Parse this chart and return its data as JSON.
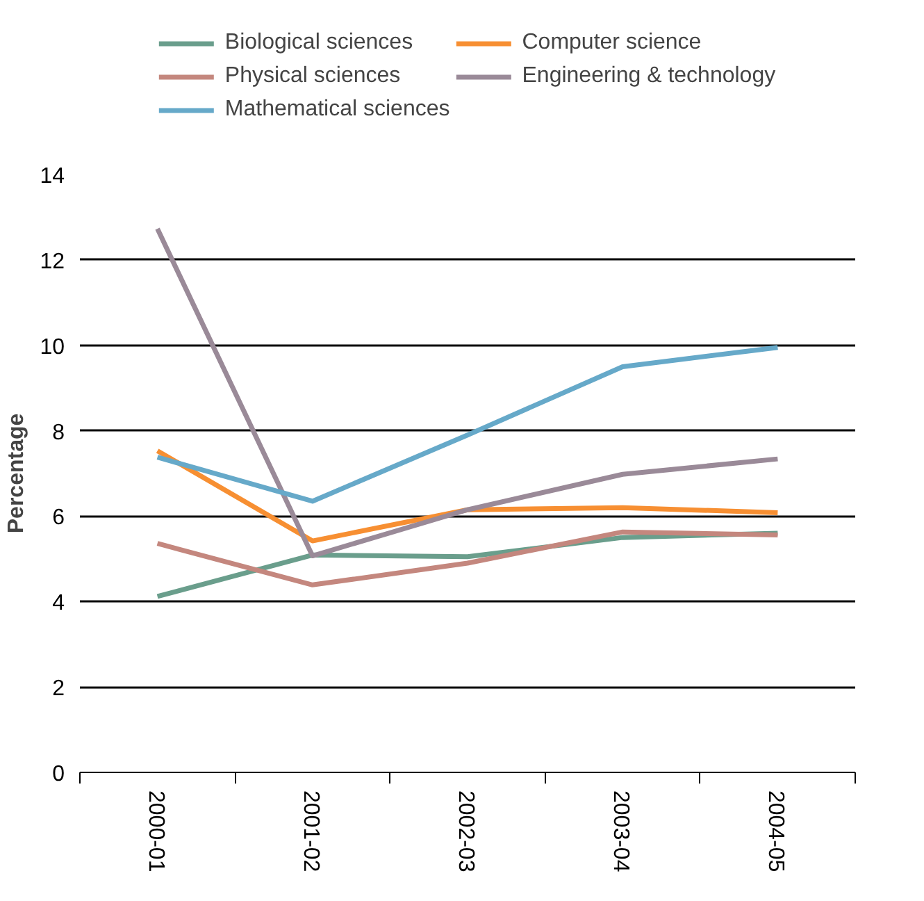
{
  "chart_data": {
    "type": "line",
    "ylabel": "Percentage",
    "categories": [
      "2000-01",
      "2001-02",
      "2002-03",
      "2003-04",
      "2004-05"
    ],
    "ylim": [
      0,
      14
    ],
    "yticks": [
      0,
      2,
      4,
      6,
      8,
      10,
      12,
      14
    ],
    "grid": "y",
    "legend": "top",
    "line_style": "solid",
    "marker": "none",
    "series": [
      {
        "name": "Biological sciences",
        "color": "#6a9e8c",
        "values": [
          4.12,
          5.09,
          5.05,
          5.5,
          5.6
        ]
      },
      {
        "name": "Computer science",
        "color": "#f78f32",
        "values": [
          7.53,
          5.42,
          6.15,
          6.2,
          6.08
        ]
      },
      {
        "name": "Physical sciences",
        "color": "#c4877e",
        "values": [
          5.36,
          4.39,
          4.9,
          5.63,
          5.56
        ]
      },
      {
        "name": "Engineering & technology",
        "color": "#9a8a98",
        "values": [
          12.73,
          5.07,
          6.15,
          6.98,
          7.34
        ]
      },
      {
        "name": "Mathematical sciences",
        "color": "#66a9c9",
        "values": [
          7.38,
          6.35,
          7.9,
          9.5,
          9.95
        ]
      }
    ]
  }
}
